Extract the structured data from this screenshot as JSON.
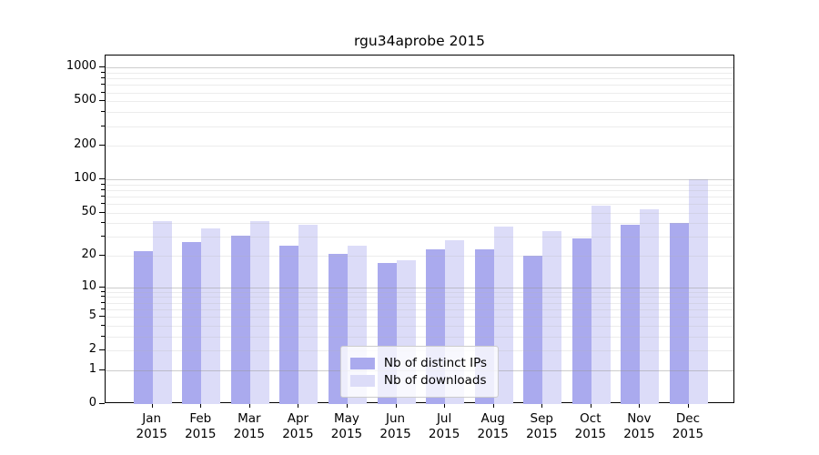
{
  "chart_data": {
    "type": "bar",
    "title": "rgu34aprobe 2015",
    "scale": "log1p",
    "categories": [
      "Jan",
      "Feb",
      "Mar",
      "Apr",
      "May",
      "Jun",
      "Jul",
      "Aug",
      "Sep",
      "Oct",
      "Nov",
      "Dec"
    ],
    "year": "2015",
    "series": [
      {
        "name": "Nb of distinct IPs",
        "color": "#aaaaee",
        "values": [
          22,
          27,
          31,
          25,
          21,
          17,
          23,
          23,
          20,
          29,
          39,
          40
        ]
      },
      {
        "name": "Nb of downloads",
        "color": "#dcdcf8",
        "values": [
          42,
          36,
          42,
          39,
          25,
          18,
          28,
          37,
          34,
          58,
          54,
          100
        ]
      }
    ],
    "y_ticks": [
      0,
      1,
      2,
      5,
      10,
      20,
      50,
      100,
      200,
      500,
      1000
    ],
    "ylim": [
      0,
      1000
    ],
    "grid": true,
    "legend_position": "lower center"
  },
  "colors": {
    "major_grid": "#cccccc",
    "minor_grid": "#ececec",
    "spine": "#000000",
    "text": "#000000"
  }
}
